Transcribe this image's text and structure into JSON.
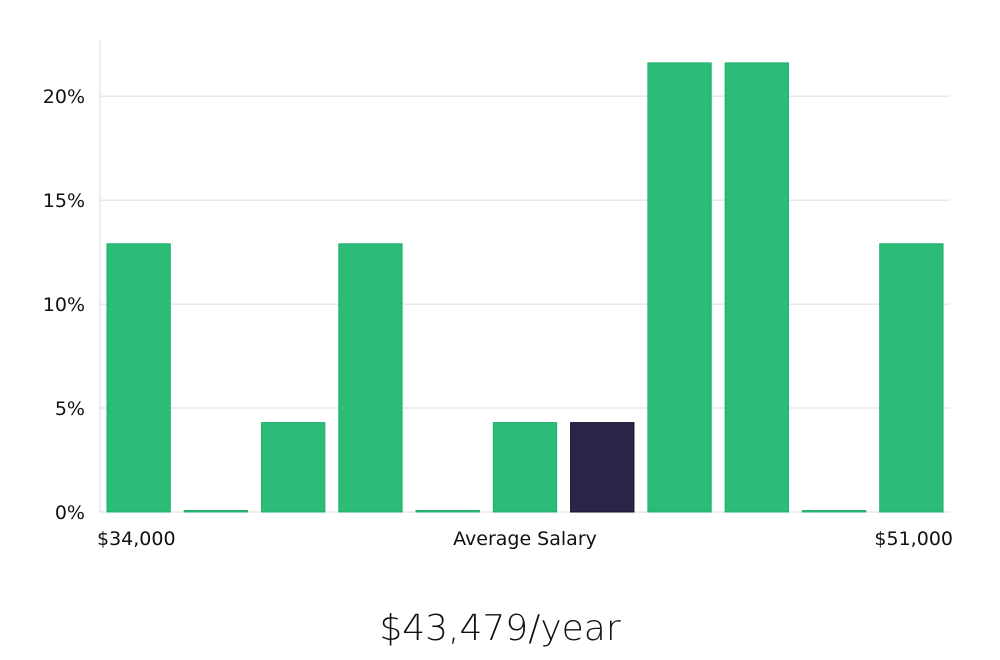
{
  "chart_data": {
    "type": "bar",
    "categories": [
      "1",
      "2",
      "3",
      "4",
      "5",
      "6",
      "7",
      "8",
      "9",
      "10",
      "11"
    ],
    "values": [
      12.9,
      0,
      4.3,
      12.9,
      0,
      4.3,
      4.3,
      21.6,
      21.6,
      0,
      12.9
    ],
    "highlight_index": 6,
    "ylim": [
      0,
      22.7
    ],
    "yticks": [
      0,
      5,
      10,
      15,
      20
    ],
    "ytick_labels": [
      "0%",
      "5%",
      "10%",
      "15%",
      "20%"
    ],
    "grid": true,
    "colors": {
      "bar": "#2bbd77",
      "highlight": "#2a2546",
      "grid": "#dcdcdc"
    }
  },
  "x_axis": {
    "min_label": "$34,000",
    "center_label": "Average Salary",
    "max_label": "$51,000"
  },
  "salary_label": "$43,479/year"
}
